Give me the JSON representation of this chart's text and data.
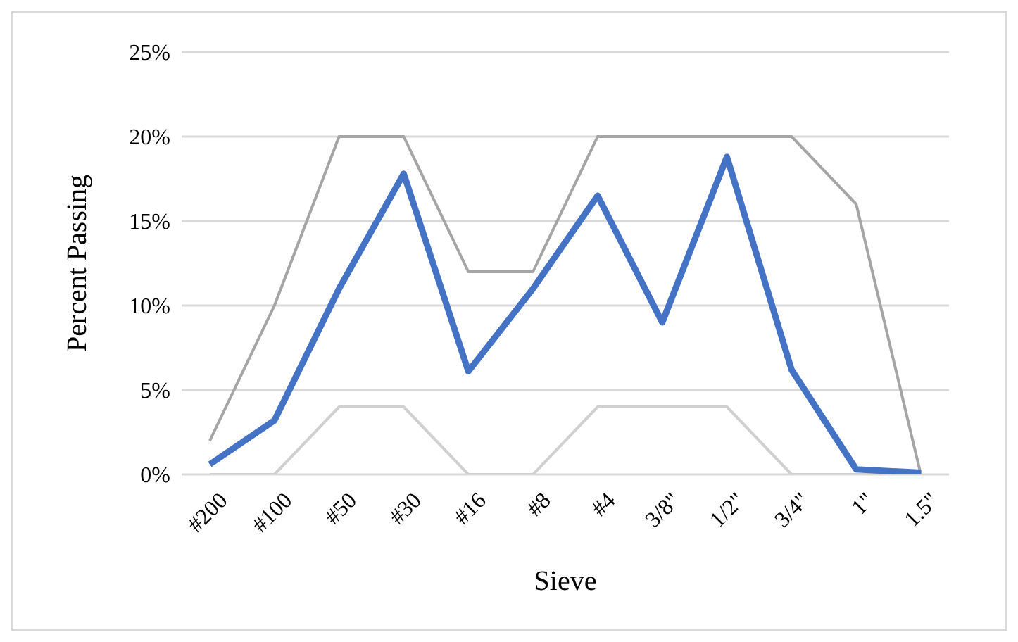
{
  "chart_data": {
    "type": "line",
    "xlabel": "Sieve",
    "ylabel": "Percent Passing",
    "categories": [
      "#200",
      "#100",
      "#50",
      "#30",
      "#16",
      "#8",
      "#4",
      "3/8\"",
      "1/2\"",
      "3/4\"",
      "1\"",
      "1.5\""
    ],
    "series": [
      {
        "color": "#a5a5a5",
        "values": [
          2,
          10,
          20,
          20,
          12,
          12,
          20,
          20,
          20,
          20,
          16,
          0
        ]
      },
      {
        "color": "#d0d0d0",
        "values": [
          0,
          0,
          4,
          4,
          0,
          0,
          4,
          4,
          4,
          0,
          0,
          0
        ]
      },
      {
        "color": "#4472c4",
        "values": [
          0.6,
          3.2,
          11,
          17.8,
          6.1,
          11,
          16.5,
          9,
          18.8,
          6.2,
          0.3,
          0.1
        ]
      }
    ],
    "ylim": [
      0,
      25
    ],
    "yticks": [
      {
        "value": 0,
        "label": "0%"
      },
      {
        "value": 5,
        "label": "5%"
      },
      {
        "value": 10,
        "label": "10%"
      },
      {
        "value": 15,
        "label": "15%"
      },
      {
        "value": 20,
        "label": "20%"
      },
      {
        "value": 25,
        "label": "25%"
      }
    ],
    "grid": "y",
    "legend": false,
    "marker": "none",
    "line_style": "solid"
  }
}
